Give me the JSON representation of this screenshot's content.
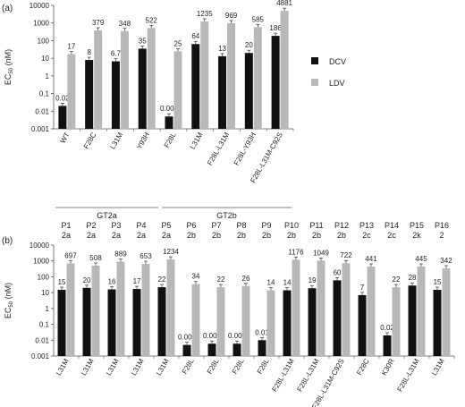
{
  "colors": {
    "dcv": "#111111",
    "ldv": "#b8b8b8",
    "axis": "#555555",
    "text": "#222222"
  },
  "legend": [
    {
      "name": "DCV",
      "color": "#111111"
    },
    {
      "name": "LDV",
      "color": "#b8b8b8"
    }
  ],
  "chart_data": [
    {
      "panel": "(a)",
      "type": "bar",
      "ylabel_main": "EC",
      "ylabel_sub": "50",
      "ylabel_unit": " (nM)",
      "yscale": "log",
      "ylim": [
        0.001,
        10000
      ],
      "yticks": [
        "0.001",
        "0.01",
        "0.1",
        "1",
        "10",
        "100",
        "1000",
        "10000"
      ],
      "categories": [
        "WT",
        "F28C",
        "L31M",
        "Y93H",
        "F28L",
        "L31M",
        "F28L-L31M",
        "F28L-Y93H",
        "F28L-L31M-C92S"
      ],
      "series": [
        {
          "name": "DCV",
          "values": [
            0.02,
            8,
            6.7,
            35,
            0.005,
            64,
            13,
            20,
            186
          ],
          "labels": [
            "0.02",
            "8",
            "6.7",
            "35",
            "0.005",
            "64",
            "13",
            "20",
            "186"
          ]
        },
        {
          "name": "LDV",
          "values": [
            17,
            379,
            348,
            522,
            25,
            1235,
            969,
            585,
            4881
          ],
          "labels": [
            "17",
            "379",
            "348",
            "522",
            "25",
            "1235",
            "969",
            "585",
            "4881"
          ]
        }
      ],
      "groups": [
        {
          "label": "GT2a",
          "from": 0,
          "to": 3
        },
        {
          "label": "GT2b",
          "from": 4,
          "to": 8
        }
      ]
    },
    {
      "panel": "(b)",
      "type": "bar",
      "ylabel_main": "EC",
      "ylabel_sub": "50",
      "ylabel_unit": " (nM)",
      "yscale": "log",
      "ylim": [
        0.001,
        10000
      ],
      "yticks": [
        "0.001",
        "0.01",
        "0.1",
        "1",
        "10",
        "100",
        "1000",
        "10000"
      ],
      "patients": [
        "P1",
        "P2",
        "P3",
        "P4",
        "P5",
        "P6",
        "P7",
        "P8",
        "P9",
        "P10",
        "P11",
        "P12",
        "P13",
        "P14",
        "P15",
        "P16"
      ],
      "genotypes": [
        "2a",
        "2a",
        "2a",
        "2a",
        "2a",
        "2b",
        "2b",
        "2b",
        "2b",
        "2b",
        "2b",
        "2b",
        "2c",
        "2c",
        "2k",
        "2"
      ],
      "categories": [
        "L31M",
        "L31M",
        "L31M",
        "L31M",
        "L31M",
        "F28L",
        "F28L",
        "F28L",
        "F28L",
        "F28L-L31M",
        "F28L-L31M",
        "F28L-L31M-C92S",
        "F28C",
        "K30R",
        "F28L-L31M",
        "L31M"
      ],
      "series": [
        {
          "name": "DCV",
          "values": [
            15,
            20,
            16,
            17,
            22,
            0.005,
            0.006,
            0.006,
            0.01,
            14,
            19,
            60,
            7,
            0.02,
            28,
            15
          ],
          "labels": [
            "15",
            "20",
            "16",
            "17",
            "22",
            "0.005",
            "0.006",
            "0.006",
            "0.01",
            "14",
            "19",
            "60",
            "7",
            "0.02",
            "28",
            "15"
          ]
        },
        {
          "name": "LDV",
          "values": [
            697,
            508,
            889,
            653,
            1234,
            34,
            22,
            26,
            14,
            1176,
            1049,
            722,
            441,
            22,
            445,
            342
          ],
          "labels": [
            "697",
            "508",
            "889",
            "653",
            "1234",
            "34",
            "22",
            "26",
            "14",
            "1176",
            "1049",
            "722",
            "441",
            "22",
            "445",
            "342"
          ]
        }
      ]
    }
  ]
}
